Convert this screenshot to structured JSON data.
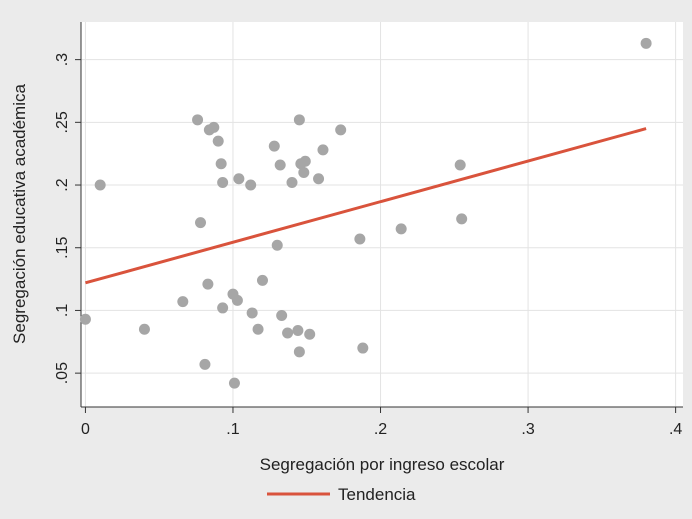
{
  "chart_data": {
    "type": "scatter",
    "xlabel": "Segregación por ingreso escolar",
    "ylabel": "Segregación educativa académica",
    "xlim": [
      -0.003,
      0.405
    ],
    "ylim": [
      0.023,
      0.33
    ],
    "x_ticks": [
      0,
      0.1,
      0.2,
      0.3,
      0.4
    ],
    "x_tick_labels": [
      "0",
      ".1",
      ".2",
      ".3",
      ".4"
    ],
    "y_ticks": [
      0.05,
      0.1,
      0.15,
      0.2,
      0.25,
      0.3
    ],
    "y_tick_labels": [
      ".05",
      ".1",
      ".15",
      ".2",
      ".25",
      ".3"
    ],
    "grid": true,
    "legend_position": "bottom",
    "colors": {
      "points": "#a6a6a6",
      "trend": "#d9533c",
      "plot_bg": "#ffffff",
      "outer_bg": "#ebebeb",
      "grid": "#e3e3e3"
    },
    "series": [
      {
        "kind": "points",
        "points": [
          [
            0.0,
            0.093
          ],
          [
            0.01,
            0.2
          ],
          [
            0.04,
            0.085
          ],
          [
            0.066,
            0.107
          ],
          [
            0.076,
            0.252
          ],
          [
            0.078,
            0.17
          ],
          [
            0.081,
            0.057
          ],
          [
            0.083,
            0.121
          ],
          [
            0.084,
            0.244
          ],
          [
            0.087,
            0.246
          ],
          [
            0.09,
            0.235
          ],
          [
            0.092,
            0.217
          ],
          [
            0.093,
            0.202
          ],
          [
            0.093,
            0.102
          ],
          [
            0.1,
            0.113
          ],
          [
            0.101,
            0.042
          ],
          [
            0.103,
            0.108
          ],
          [
            0.104,
            0.205
          ],
          [
            0.112,
            0.2
          ],
          [
            0.113,
            0.098
          ],
          [
            0.117,
            0.085
          ],
          [
            0.12,
            0.124
          ],
          [
            0.128,
            0.231
          ],
          [
            0.13,
            0.152
          ],
          [
            0.132,
            0.216
          ],
          [
            0.133,
            0.096
          ],
          [
            0.137,
            0.082
          ],
          [
            0.14,
            0.202
          ],
          [
            0.144,
            0.084
          ],
          [
            0.145,
            0.252
          ],
          [
            0.145,
            0.067
          ],
          [
            0.146,
            0.217
          ],
          [
            0.148,
            0.21
          ],
          [
            0.149,
            0.219
          ],
          [
            0.152,
            0.081
          ],
          [
            0.158,
            0.205
          ],
          [
            0.161,
            0.228
          ],
          [
            0.173,
            0.244
          ],
          [
            0.186,
            0.157
          ],
          [
            0.188,
            0.07
          ],
          [
            0.214,
            0.165
          ],
          [
            0.254,
            0.216
          ],
          [
            0.255,
            0.173
          ],
          [
            0.38,
            0.313
          ]
        ]
      },
      {
        "kind": "line",
        "name": "Tendencia",
        "points": [
          [
            0.0,
            0.122
          ],
          [
            0.38,
            0.245
          ]
        ]
      }
    ]
  },
  "legend": {
    "trend_label": "Tendencia"
  }
}
